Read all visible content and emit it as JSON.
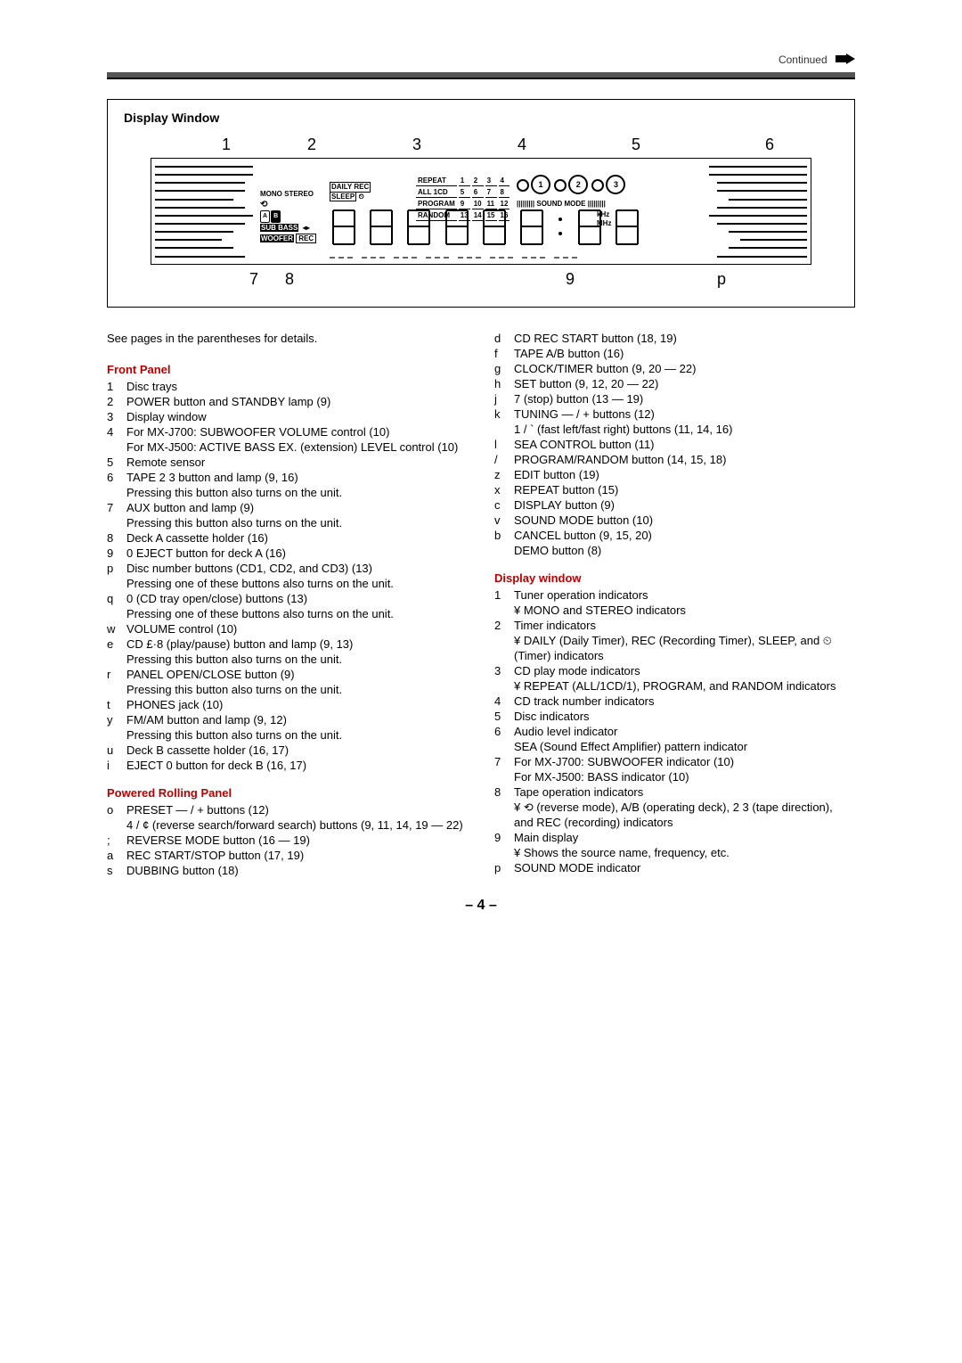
{
  "continued_label": "Continued",
  "page_number": "– 4 –",
  "display_window_heading": "Display Window",
  "top_callouts": [
    "1",
    "2",
    "3",
    "4",
    "5",
    "6"
  ],
  "bottom_callouts": [
    "7",
    "8",
    "9",
    "p"
  ],
  "display_labels": {
    "mono_stereo": "MONO STEREO",
    "a": "A",
    "b": "B",
    "subbass": "SUB BASS",
    "woofer": "WOOFER",
    "rec": "REC",
    "daily_rec": "DAILY REC",
    "sleep": "SLEEP",
    "repeat": "REPEAT",
    "all_1cd": "ALL 1CD",
    "program": "PROGRAM",
    "random": "RANDOM",
    "sound_mode": "SOUND MODE",
    "khz": "kHz",
    "mhz": "MHz",
    "grid": [
      [
        "1",
        "2",
        "3",
        "4"
      ],
      [
        "5",
        "6",
        "7",
        "8"
      ],
      [
        "9",
        "10",
        "11",
        "12"
      ],
      [
        "13",
        "14",
        "15",
        "16"
      ]
    ],
    "discs": [
      "1",
      "2",
      "3"
    ]
  },
  "intro_line": "See pages in the parentheses for details.",
  "sections": {
    "front_panel": {
      "heading": "Front Panel",
      "items": [
        {
          "n": "1",
          "t": "Disc trays"
        },
        {
          "n": "2",
          "t": "POWER button and STANDBY lamp (9)"
        },
        {
          "n": "3",
          "t": "Display window"
        },
        {
          "n": "4",
          "t": "For MX-J700: SUBWOOFER VOLUME control (10)\nFor MX-J500: ACTIVE BASS EX. (extension) LEVEL control (10)"
        },
        {
          "n": "5",
          "t": "Remote sensor"
        },
        {
          "n": "6",
          "t": "TAPE 2 3  button and lamp (9, 16)\nPressing this button also turns on the unit."
        },
        {
          "n": "7",
          "t": "AUX button and lamp (9)\nPressing this button also turns on the unit."
        },
        {
          "n": "8",
          "t": "Deck A cassette holder (16)"
        },
        {
          "n": "9",
          "t": "0 EJECT button for deck A (16)"
        },
        {
          "n": "p",
          "t": "Disc number buttons (CD1, CD2, and CD3) (13)\nPressing one of these buttons also turns on the unit."
        },
        {
          "n": "q",
          "t": "0  (CD tray open/close) buttons (13)\nPressing one of these buttons also turns on the unit."
        },
        {
          "n": "w",
          "t": "VOLUME control (10)"
        },
        {
          "n": "e",
          "t": "CD £·8    (play/pause) button and lamp (9, 13)\nPressing this button also turns on the unit."
        },
        {
          "n": "r",
          "t": "PANEL OPEN/CLOSE button (9)\nPressing this button also turns on the unit."
        },
        {
          "n": "t",
          "t": "PHONES jack (10)"
        },
        {
          "n": "y",
          "t": "FM/AM button and lamp (9, 12)\nPressing this button also turns on the unit."
        },
        {
          "n": "u",
          "t": "Deck B cassette holder (16, 17)"
        },
        {
          "n": "i",
          "t": "EJECT 0  button for deck B (16, 17)"
        }
      ]
    },
    "powered_rolling_panel": {
      "heading": "Powered Rolling Panel",
      "items": [
        {
          "n": "o",
          "t": "PRESET — / + buttons (12)\n4    / ¢    (reverse search/forward search) buttons (9, 11, 14, 19 — 22)"
        },
        {
          "n": ";",
          "t": "REVERSE MODE button (16 — 19)"
        },
        {
          "n": "a",
          "t": "REC START/STOP button (17, 19)"
        },
        {
          "n": "s",
          "t": "DUBBING button (18)"
        }
      ]
    },
    "right_buttons": {
      "items": [
        {
          "n": "d",
          "t": "CD REC START button (18, 19)"
        },
        {
          "n": "f",
          "t": "TAPE A/B button (16)"
        },
        {
          "n": "g",
          "t": "CLOCK/TIMER button (9, 20 — 22)"
        },
        {
          "n": "h",
          "t": "SET button (9, 12, 20 — 22)"
        },
        {
          "n": "j",
          "t": "7 (stop) button (13 — 19)"
        },
        {
          "n": "k",
          "t": "TUNING — / + buttons (12)\n1    / `      (fast left/fast right) buttons (11, 14, 16)"
        },
        {
          "n": "l",
          "t": "SEA CONTROL button (11)"
        },
        {
          "n": "/",
          "t": "PROGRAM/RANDOM button (14, 15, 18)"
        },
        {
          "n": "z",
          "t": "EDIT button (19)"
        },
        {
          "n": "x",
          "t": "REPEAT button (15)"
        },
        {
          "n": "c",
          "t": "DISPLAY button (9)"
        },
        {
          "n": "v",
          "t": "SOUND MODE button (10)"
        },
        {
          "n": "b",
          "t": "CANCEL button (9, 15, 20)\nDEMO button (8)"
        }
      ]
    },
    "display_window_list": {
      "heading": "Display window",
      "items": [
        {
          "n": "1",
          "t": "Tuner operation indicators",
          "subs": [
            "MONO and STEREO indicators"
          ]
        },
        {
          "n": "2",
          "t": "Timer indicators",
          "subs": [
            "DAILY (Daily Timer), REC (Recording Timer), SLEEP, and ⏲ (Timer) indicators"
          ]
        },
        {
          "n": "3",
          "t": "CD play mode indicators",
          "subs": [
            "REPEAT (ALL/1CD/1), PROGRAM, and RANDOM indicators"
          ]
        },
        {
          "n": "4",
          "t": "CD track number indicators"
        },
        {
          "n": "5",
          "t": "Disc indicators"
        },
        {
          "n": "6",
          "t": "Audio level indicator\nSEA (Sound Effect Amplifier) pattern indicator"
        },
        {
          "n": "7",
          "t": "For MX-J700: SUBWOOFER indicator (10)\nFor MX-J500: BASS indicator (10)"
        },
        {
          "n": "8",
          "t": "Tape operation indicators",
          "subs": [
            "⟲ (reverse mode), A/B (operating deck), 2 3  (tape direction), and REC (recording) indicators"
          ]
        },
        {
          "n": "9",
          "t": "Main display",
          "subs": [
            "Shows the source name, frequency, etc."
          ]
        },
        {
          "n": "p",
          "t": "SOUND MODE indicator"
        }
      ]
    }
  }
}
